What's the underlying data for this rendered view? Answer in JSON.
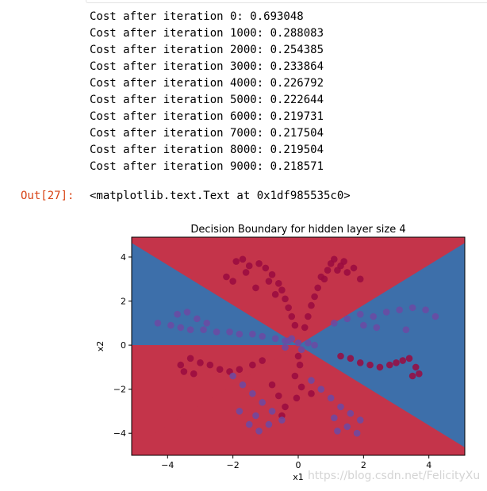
{
  "output": {
    "lines": [
      "Cost after iteration 0: 0.693048",
      "Cost after iteration 1000: 0.288083",
      "Cost after iteration 2000: 0.254385",
      "Cost after iteration 3000: 0.233864",
      "Cost after iteration 4000: 0.226792",
      "Cost after iteration 5000: 0.222644",
      "Cost after iteration 6000: 0.219731",
      "Cost after iteration 7000: 0.217504",
      "Cost after iteration 8000: 0.219504",
      "Cost after iteration 9000: 0.218571"
    ],
    "prompt": "Out[27]:",
    "result_text": "<matplotlib.text.Text at 0x1df985535c0>"
  },
  "watermark": "https://blog.csdn.net/FelicityXu",
  "colors": {
    "region_red": "#c4344a",
    "region_blue": "#3d6faa",
    "point_red": "#9a0a40",
    "point_purple": "#6c4aa3",
    "prompt": "#d84315"
  },
  "chart_data": {
    "type": "scatter",
    "title": "Decision Boundary for hidden layer size 4",
    "xlabel": "x1",
    "ylabel": "x2",
    "xlim": [
      -5.1,
      5.1
    ],
    "ylim": [
      -5.0,
      4.9
    ],
    "xticks": [
      -4,
      -2,
      0,
      2,
      4
    ],
    "yticks": [
      -4,
      -2,
      0,
      2,
      4
    ],
    "xtick_labels": [
      "−4",
      "−2",
      "0",
      "2",
      "4"
    ],
    "ytick_labels": [
      "−4",
      "−2",
      "0",
      "2",
      "4"
    ],
    "grid": false,
    "decision_regions": {
      "classes": [
        "red",
        "blue"
      ],
      "description_boundary": "two lines through origin with slopes approximately +0.91 and -0.91 plus the x-axis",
      "boundary_slopes": [
        0.91,
        -0.91,
        0
      ]
    },
    "series": [
      {
        "class": "red",
        "x": [
          -1.9,
          -1.7,
          -1.5,
          -1.2,
          -1.0,
          -0.8,
          -0.6,
          -0.5,
          -0.4,
          -0.3,
          -0.2,
          -0.1,
          -2.2,
          -2.0,
          -1.6,
          -1.3,
          -0.9,
          -0.7,
          0.2,
          0.3,
          0.4,
          0.5,
          0.6,
          0.8,
          0.9,
          1.0,
          1.1,
          1.3,
          1.5,
          1.7,
          1.9,
          0.7,
          1.2,
          1.4,
          -3.3,
          -3.0,
          -2.7,
          -2.4,
          -2.1,
          -1.8,
          -1.4,
          -1.1,
          -3.6,
          -3.5,
          -3.2,
          3.4,
          3.2,
          3.0,
          2.8,
          2.5,
          2.2,
          1.9,
          1.6,
          1.3,
          3.6,
          3.7,
          3.5,
          0.0,
          0.05,
          -0.1,
          0.1,
          -0.05,
          -0.8,
          -0.6,
          -0.4,
          -0.5,
          0.4
        ],
        "y": [
          3.8,
          3.9,
          3.6,
          3.7,
          3.5,
          3.2,
          2.8,
          2.5,
          2.1,
          1.7,
          1.3,
          0.9,
          3.1,
          2.9,
          3.3,
          2.6,
          2.9,
          2.3,
          0.8,
          1.3,
          1.8,
          2.2,
          2.6,
          3.0,
          3.4,
          3.7,
          3.9,
          3.6,
          3.3,
          3.5,
          3.0,
          3.1,
          3.4,
          3.8,
          -0.6,
          -0.8,
          -0.9,
          -1.1,
          -1.2,
          -1.1,
          -0.9,
          -0.7,
          -0.9,
          -1.2,
          -1.3,
          -0.6,
          -0.7,
          -0.8,
          -0.9,
          -1.0,
          -0.9,
          -0.8,
          -0.6,
          -0.5,
          -1.0,
          -1.3,
          -1.4,
          -0.5,
          -0.9,
          -1.4,
          -1.9,
          -2.4,
          -1.8,
          -2.3,
          -2.8,
          -3.2,
          -2.2
        ]
      },
      {
        "class": "purple",
        "x": [
          -4.3,
          -3.9,
          -3.6,
          -3.3,
          -2.9,
          -2.5,
          -2.1,
          -1.8,
          -1.4,
          -1.1,
          -0.7,
          -0.4,
          -3.7,
          -3.4,
          -3.1,
          -2.8,
          1.1,
          1.5,
          1.9,
          2.3,
          2.7,
          3.1,
          3.5,
          3.9,
          4.2,
          2.0,
          2.4,
          3.3,
          -2.0,
          -1.7,
          -1.4,
          -1.1,
          -0.8,
          -0.5,
          -1.8,
          -1.5,
          -1.2,
          -0.9,
          -1.3,
          0.4,
          0.7,
          1.0,
          1.3,
          1.6,
          1.9,
          1.2,
          1.5,
          1.8,
          1.1,
          0.3,
          0.5,
          -0.4,
          -0.3,
          -0.2,
          0.0,
          0.1
        ],
        "y": [
          1.0,
          0.9,
          0.8,
          0.7,
          0.7,
          0.6,
          0.6,
          0.5,
          0.5,
          0.4,
          0.3,
          0.2,
          1.4,
          1.5,
          1.2,
          1.0,
          1.0,
          1.2,
          1.4,
          1.3,
          1.5,
          1.6,
          1.7,
          1.6,
          1.3,
          0.9,
          0.8,
          0.7,
          -1.4,
          -1.8,
          -2.2,
          -2.6,
          -3.0,
          -3.4,
          -3.0,
          -3.6,
          -3.9,
          -3.6,
          -3.2,
          -1.6,
          -2.0,
          -2.4,
          -2.8,
          -3.1,
          -3.4,
          -3.9,
          -3.7,
          -4.0,
          -3.3,
          0.1,
          0.0,
          -0.1,
          0.2,
          0.3,
          0.1,
          -0.2
        ]
      }
    ]
  }
}
